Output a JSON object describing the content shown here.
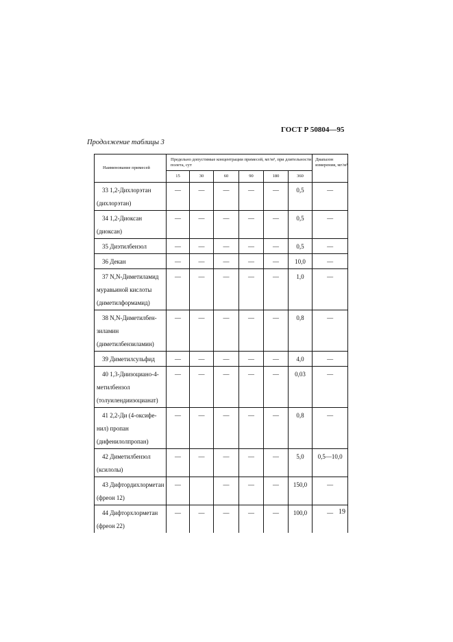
{
  "header": {
    "doc_id": "ГОСТ Р 50804—95",
    "caption": "Продолжение таблицы 3"
  },
  "table": {
    "col_name": "Наименование примесей",
    "col_conc": "Предельно допустимые концентрации примесей, мг/м³, при длительности полета, сут",
    "col_range": "Диапазон измерения, мг/м³",
    "durations": [
      "15",
      "30",
      "60",
      "90",
      "180",
      "360"
    ],
    "rows": [
      {
        "name": [
          "33 1,2-Дихлорэтан",
          "(дихлорэтан)"
        ],
        "values": [
          "—",
          "—",
          "—",
          "—",
          "—",
          "0,5"
        ],
        "range": "—"
      },
      {
        "name": [
          "34 1,2-Диоксан",
          "(диоксан)"
        ],
        "values": [
          "—",
          "—",
          "—",
          "—",
          "—",
          "0,5"
        ],
        "range": "—"
      },
      {
        "name": [
          "35 Диэтилбензол"
        ],
        "values": [
          "—",
          "—",
          "—",
          "—",
          "—",
          "0,5"
        ],
        "range": "—"
      },
      {
        "name": [
          "36 Декан"
        ],
        "values": [
          "—",
          "—",
          "—",
          "—",
          "—",
          "10,0"
        ],
        "range": "—"
      },
      {
        "name": [
          "37 N,N-Диметиламид",
          "муравьиной кислоты",
          "(диметилформамид)"
        ],
        "values": [
          "—",
          "—",
          "—",
          "—",
          "—",
          "1,0"
        ],
        "range": "—"
      },
      {
        "name": [
          "38 N,N-Диметилбен-",
          "зиламин",
          "(диметилбензиламин)"
        ],
        "values": [
          "—",
          "—",
          "—",
          "—",
          "—",
          "0,8"
        ],
        "range": "—"
      },
      {
        "name": [
          "39 Диметилсульфид"
        ],
        "values": [
          "—",
          "—",
          "—",
          "—",
          "—",
          "4,0"
        ],
        "range": "—"
      },
      {
        "name": [
          "40 1,3-Диизоциано-4-",
          "метилбензол",
          "(толуилендиизоцианат)"
        ],
        "values": [
          "—",
          "—",
          "—",
          "—",
          "—",
          "0,03"
        ],
        "range": "—"
      },
      {
        "name": [
          "41 2,2-Ди (4-оксифе-",
          "нил) пропан",
          "(дифенилолпропан)"
        ],
        "values": [
          "—",
          "—",
          "—",
          "—",
          "—",
          "0,8"
        ],
        "range": "—"
      },
      {
        "name": [
          "42 Диметилбензол",
          "(ксилолы)"
        ],
        "values": [
          "—",
          "—",
          "—",
          "—",
          "—",
          "5,0"
        ],
        "range": "0,5—10,0"
      },
      {
        "name": [
          "43 Дифтордихлорметан",
          "(фреон 12)"
        ],
        "values": [
          "—",
          "",
          "—",
          "—",
          "—",
          "150,0"
        ],
        "range": "—"
      },
      {
        "name": [
          "44 Дифторхлорметан",
          "(фреон 22)"
        ],
        "values": [
          "—",
          "—",
          "—",
          "—",
          "—",
          "100,0"
        ],
        "range": "—"
      }
    ]
  },
  "footer": {
    "page_number": "19"
  }
}
